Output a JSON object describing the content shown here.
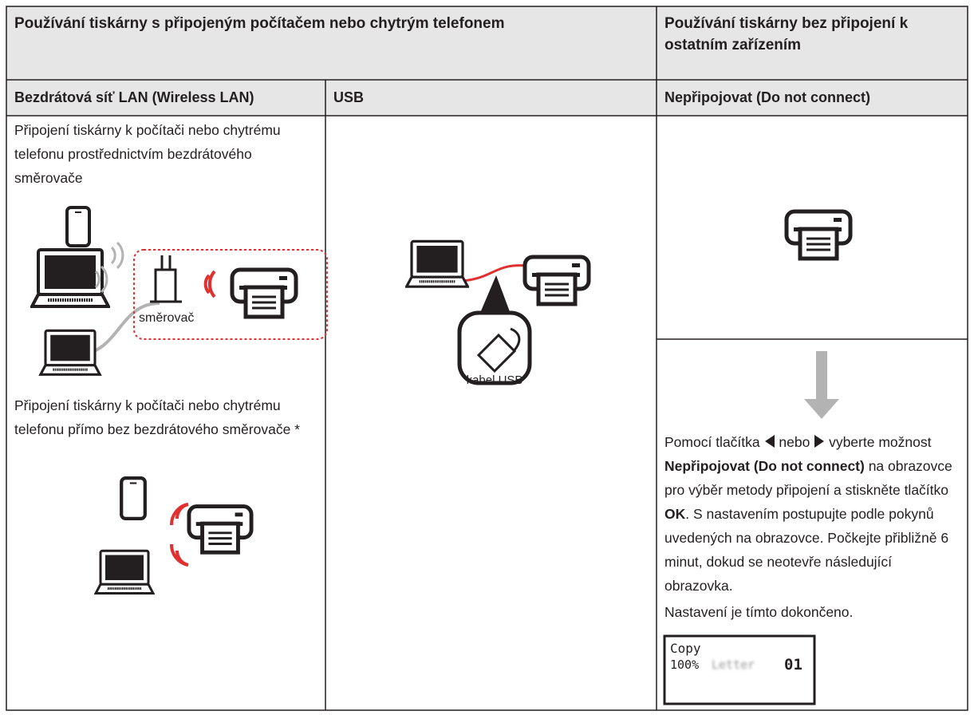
{
  "header": {
    "col_connected": "Používání tiskárny s připojeným počítačem nebo chytrým telefonem",
    "col_standalone": "Používání tiskárny bez připojení k ostatním zařízením"
  },
  "subheader": {
    "wireless": "Bezdrátová síť LAN (Wireless LAN)",
    "usb": "USB",
    "none": "Nepřipojovat (Do not connect)"
  },
  "wireless": {
    "router_text": "Připojení tiskárny k počítači nebo chytrému telefonu prostřednictvím bezdrátového směrovače",
    "router_label": "směrovač",
    "direct_text": "Připojení tiskárny k počítači nebo chytrému telefonu přímo bez bezdrátového směrovače *"
  },
  "usb": {
    "cable_label": "kabel USB"
  },
  "none": {
    "instruction": [
      "Pomocí tlačítka",
      "nebo",
      "vyberte možnost",
      "Nepřipojovat (Do not connect)",
      "na obrazovce pro výběr metody připojení a stiskněte tlačítko",
      "OK",
      ". S nastavením postupujte podle pokynů uvedených na obrazovce. Počkejte přibližně 6 minut, dokud se neotevře následující obrazovka."
    ],
    "done": "Nastavení je tímto dokončeno.",
    "screen": {
      "mode": "Copy",
      "zoom": "100%",
      "paper": "Letter",
      "copies": "01"
    }
  }
}
